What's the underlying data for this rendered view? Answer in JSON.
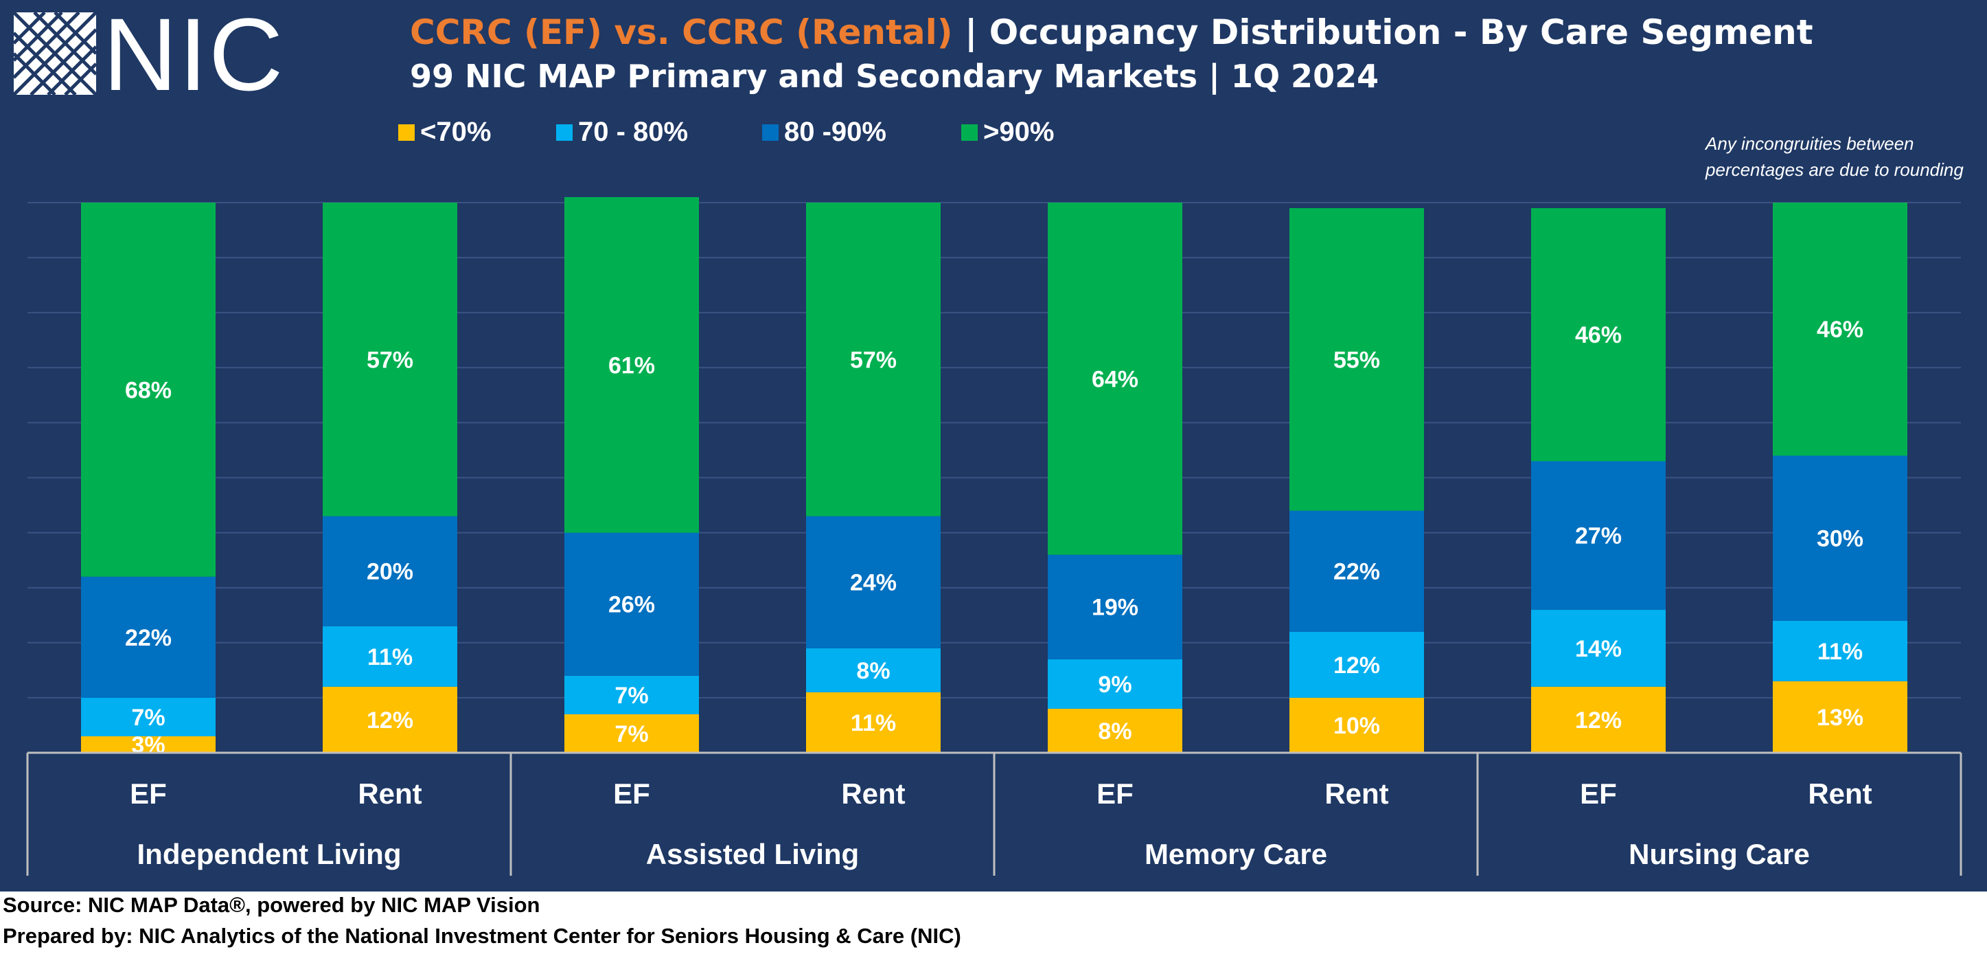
{
  "header": {
    "logo_text": "NIC",
    "title_highlight": "CCRC (EF) vs. CCRC (Rental)",
    "title_rest": " | Occupancy Distribution - By Care Segment",
    "subtitle": "99 NIC MAP Primary and Secondary Markets | 1Q 2024",
    "note_line1": "Any incongruities between",
    "note_line2": "percentages are due to rounding"
  },
  "legend": [
    {
      "label": "<70%",
      "color": "#ffc000"
    },
    {
      "label": "70 - 80%",
      "color": "#00b0f0"
    },
    {
      "label": "80 -90%",
      "color": "#0070c0"
    },
    {
      "label": ">90%",
      "color": "#00b050"
    }
  ],
  "chart_data": {
    "type": "bar",
    "stacked": true,
    "categories": [
      "EF",
      "Rent",
      "EF",
      "Rent",
      "EF",
      "Rent",
      "EF",
      "Rent"
    ],
    "groups": [
      "Independent Living",
      "Assisted Living",
      "Memory Care",
      "Nursing Care"
    ],
    "series": [
      {
        "name": "<70%",
        "color": "#ffc000",
        "values": [
          3,
          12,
          7,
          11,
          8,
          10,
          12,
          13
        ]
      },
      {
        "name": "70 - 80%",
        "color": "#00b0f0",
        "values": [
          7,
          11,
          7,
          8,
          9,
          12,
          14,
          11
        ]
      },
      {
        "name": "80 -90%",
        "color": "#0070c0",
        "values": [
          22,
          20,
          26,
          24,
          19,
          22,
          27,
          30
        ]
      },
      {
        "name": ">90%",
        "color": "#00b050",
        "values": [
          68,
          57,
          61,
          57,
          64,
          55,
          46,
          46
        ]
      }
    ],
    "data_labels": [
      [
        "3%",
        "12%",
        "7%",
        "11%",
        "8%",
        "10%",
        "12%",
        "13%"
      ],
      [
        "7%",
        "11%",
        "7%",
        "8%",
        "9%",
        "12%",
        "14%",
        "11%"
      ],
      [
        "22%",
        "20%",
        "26%",
        "24%",
        "19%",
        "22%",
        "27%",
        "30%"
      ],
      [
        "68%",
        "57%",
        "61%",
        "57%",
        "64%",
        "55%",
        "46%",
        "46%"
      ]
    ],
    "ylim": [
      0,
      100
    ],
    "grid": true,
    "legend_position": "top"
  },
  "footer": {
    "source": "Source: NIC MAP Data®, powered by NIC MAP Vision",
    "prepared": "Prepared by: NIC Analytics of the National Investment Center for Seniors Housing & Care (NIC)"
  }
}
